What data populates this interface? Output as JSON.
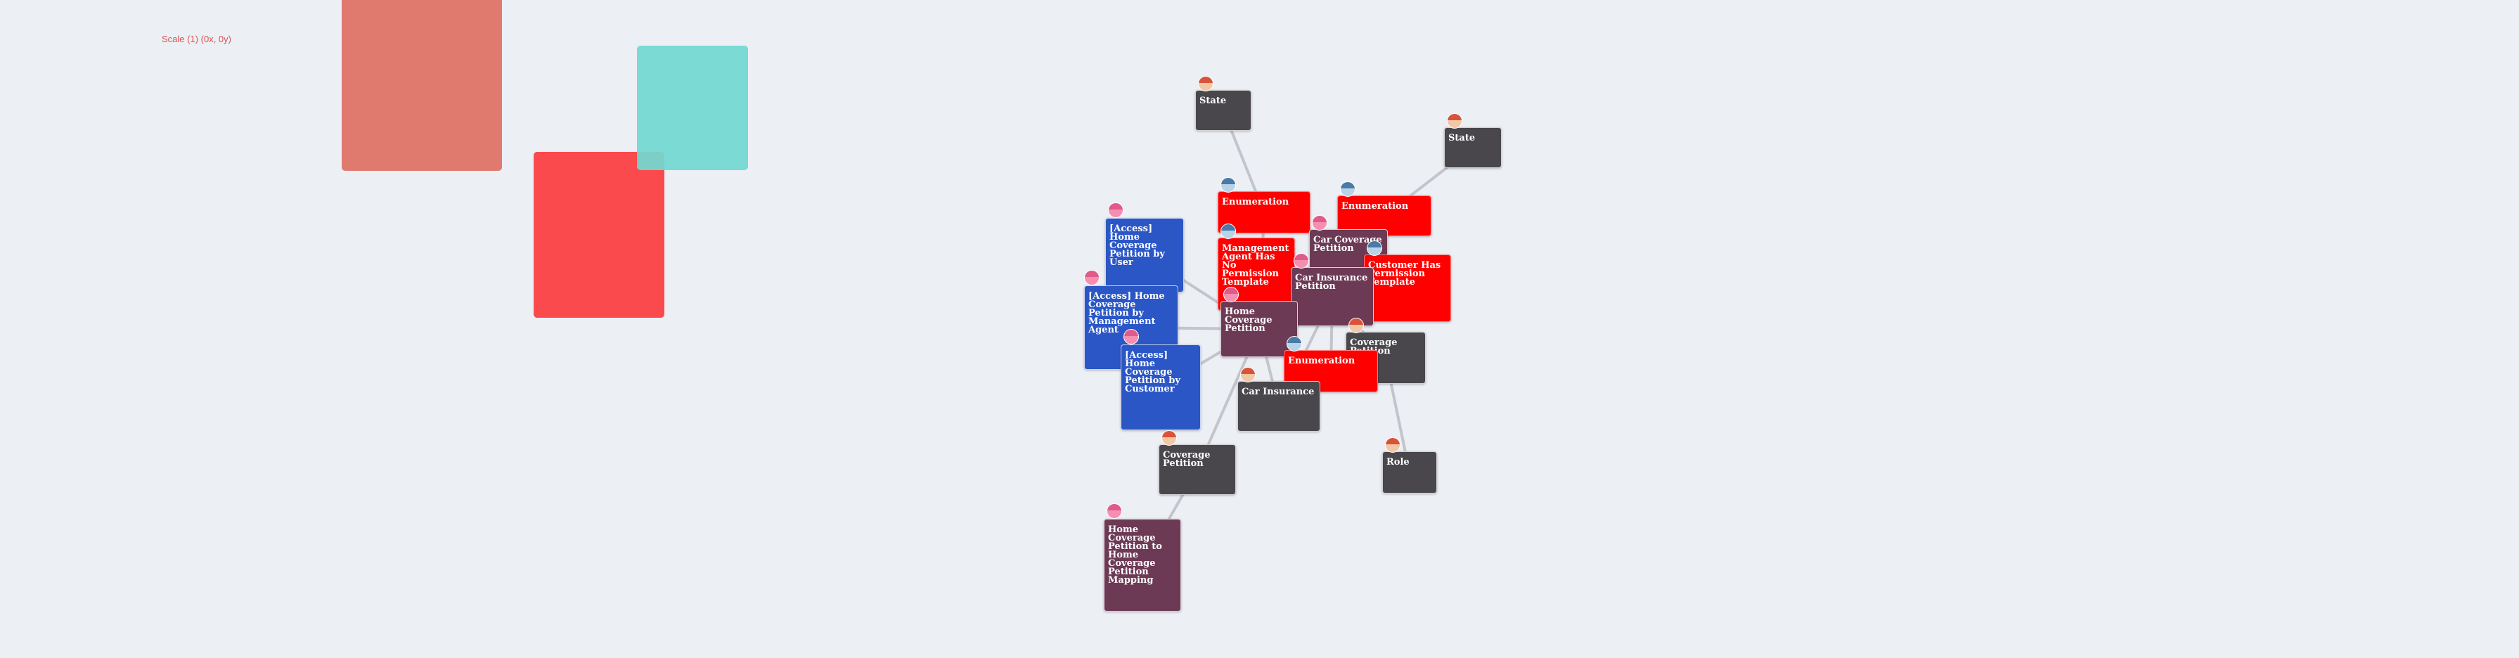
{
  "scale_label": "Scale (1) (0x, 0y)",
  "colors": {
    "background": "#eceff4",
    "entity_dark": "#4a474c",
    "enumeration_red": "#ff0000",
    "template_plum": "#6d3a55",
    "access_blue": "#2a56c6",
    "edge": "#c4c4cc",
    "shape_salmon": "#e07a6f",
    "shape_red": "#fb4a4d",
    "shape_teal": "#73d8d1"
  },
  "nodes": [
    {
      "id": "state-1",
      "label": "State",
      "type": "entity",
      "icon": "avatar-icon"
    },
    {
      "id": "state-2",
      "label": "State",
      "type": "entity",
      "icon": "avatar-icon"
    },
    {
      "id": "enumeration-1",
      "label": "Enumeration",
      "type": "enumeration",
      "icon": "avatar-icon"
    },
    {
      "id": "enumeration-2",
      "label": "Enumeration",
      "type": "enumeration",
      "icon": "avatar-icon"
    },
    {
      "id": "access-user",
      "label": "[Access] Home Coverage Petition by User",
      "type": "access",
      "icon": "avatar-icon"
    },
    {
      "id": "mgmt-agent-template",
      "label": "Management Agent Has No Permission Template",
      "type": "enumeration",
      "icon": "avatar-icon"
    },
    {
      "id": "car-coverage-petition",
      "label": "Car Coverage Petition",
      "type": "template",
      "icon": "avatar-icon"
    },
    {
      "id": "customer-template",
      "label": "Customer Has Permission Template",
      "type": "enumeration",
      "icon": "avatar-icon"
    },
    {
      "id": "car-insurance-petition",
      "label": "Car Insurance Petition",
      "type": "template",
      "icon": "avatar-icon"
    },
    {
      "id": "access-mgmt",
      "label": "[Access] Home Coverage Petition by Management Agent",
      "type": "access",
      "icon": "avatar-icon"
    },
    {
      "id": "home-coverage-petition",
      "label": "Home Coverage Petition",
      "type": "template",
      "icon": "avatar-icon"
    },
    {
      "id": "coverage-petition-1",
      "label": "Coverage Petition",
      "type": "entity",
      "icon": "avatar-icon"
    },
    {
      "id": "enumeration-3",
      "label": "Enumeration",
      "type": "enumeration",
      "icon": "avatar-icon"
    },
    {
      "id": "access-customer",
      "label": "[Access] Home Coverage Petition by Customer",
      "type": "access",
      "icon": "avatar-icon"
    },
    {
      "id": "car-insurance",
      "label": "Car Insurance",
      "type": "entity",
      "icon": "avatar-icon"
    },
    {
      "id": "coverage-petition-2",
      "label": "Coverage Petition",
      "type": "entity",
      "icon": "avatar-icon"
    },
    {
      "id": "role",
      "label": "Role",
      "type": "entity",
      "icon": "avatar-icon"
    },
    {
      "id": "mapping",
      "label": "Home Coverage Petition to Home Coverage Petition Mapping",
      "type": "template",
      "icon": "avatar-icon"
    }
  ],
  "edges": [
    [
      "state-1",
      "enumeration-1"
    ],
    [
      "state-2",
      "enumeration-2"
    ],
    [
      "access-user",
      "home-coverage-petition"
    ],
    [
      "access-mgmt",
      "home-coverage-petition"
    ],
    [
      "access-customer",
      "home-coverage-petition"
    ],
    [
      "home-coverage-petition",
      "coverage-petition-2"
    ],
    [
      "home-coverage-petition",
      "car-insurance"
    ],
    [
      "home-coverage-petition",
      "enumeration-1"
    ],
    [
      "car-insurance-petition",
      "coverage-petition-1"
    ],
    [
      "car-insurance-petition",
      "enumeration-3"
    ],
    [
      "car-insurance-petition",
      "car-insurance"
    ],
    [
      "car-coverage-petition",
      "customer-template"
    ],
    [
      "coverage-petition-1",
      "role"
    ],
    [
      "mapping",
      "coverage-petition-2"
    ],
    [
      "mgmt-agent-template",
      "car-insurance-petition"
    ],
    [
      "enumeration-2",
      "car-coverage-petition"
    ]
  ]
}
